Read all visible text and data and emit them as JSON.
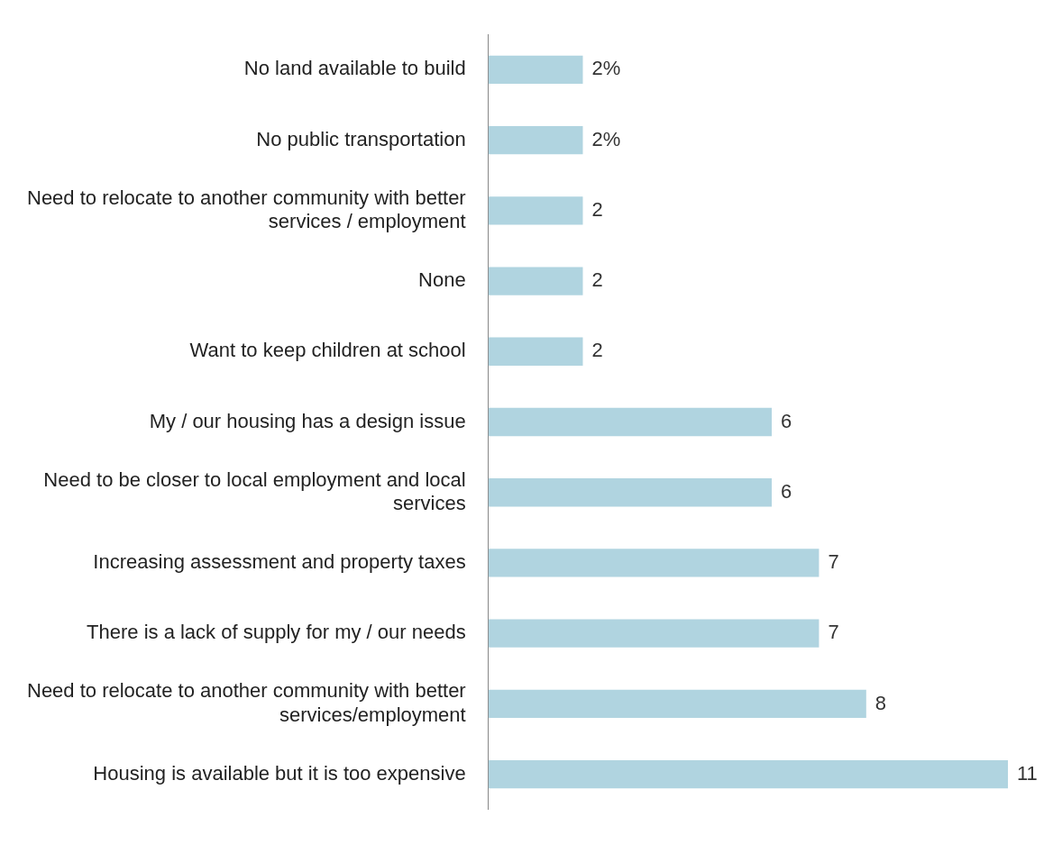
{
  "chart_data": {
    "type": "bar",
    "orientation": "horizontal",
    "categories": [
      "No land available to build",
      "No public transportation",
      "Need to relocate to another community with better services / employment",
      "None",
      "Want to keep children at school",
      "My / our housing has a design issue",
      "Need to be closer to local employment and local services",
      "Increasing assessment and property taxes",
      "There is a lack of supply for my / our needs",
      "Need to relocate to another community with better services/employment",
      "Housing is available but it is too expensive"
    ],
    "values": [
      2,
      2,
      2,
      2,
      2,
      6,
      6,
      7,
      7,
      8,
      11
    ],
    "value_labels": [
      "2%",
      "2%",
      "2",
      "2",
      "2",
      "6",
      "6",
      "7",
      "7",
      "8",
      "11"
    ],
    "color": "#b0d4e0",
    "grid": false,
    "legend": false
  }
}
